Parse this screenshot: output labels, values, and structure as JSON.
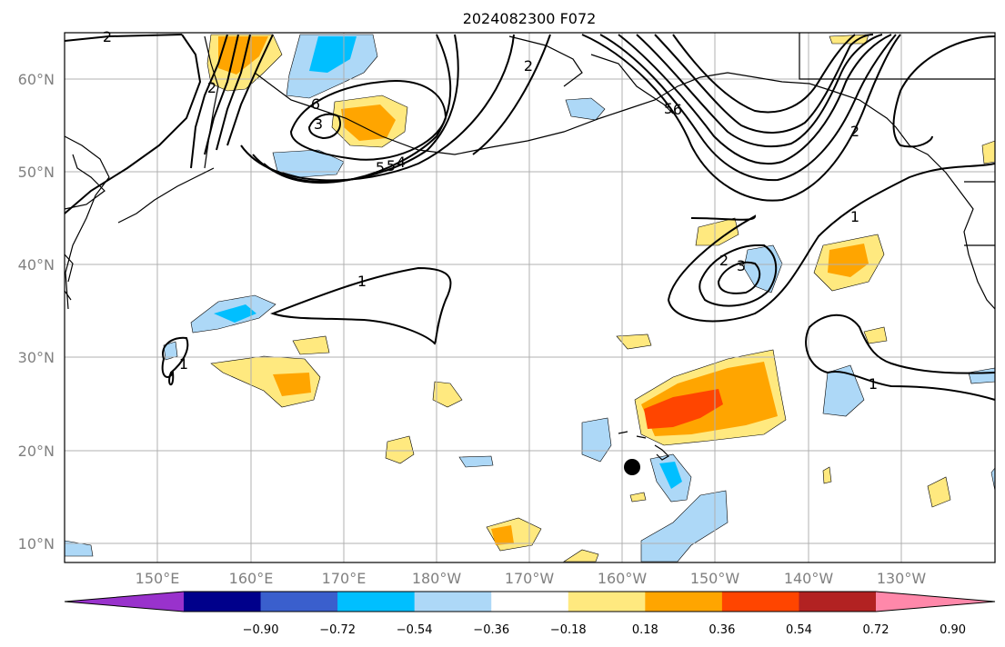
{
  "title": "2024082300 F072",
  "x_ticks": [
    "150°E",
    "160°E",
    "170°E",
    "180°W",
    "170°W",
    "160°W",
    "150°W",
    "140°W",
    "130°W"
  ],
  "y_ticks": [
    "10°N",
    "20°N",
    "30°N",
    "40°N",
    "50°N",
    "60°N"
  ],
  "colorbar": {
    "levels": [
      "−0.90",
      "−0.72",
      "−0.54",
      "−0.36",
      "−0.18",
      "0.18",
      "0.36",
      "0.54",
      "0.72",
      "0.90"
    ],
    "colors": [
      "#9932cc",
      "#00008b",
      "#3a5fcd",
      "#00bfff",
      "#add8f7",
      "#ffffff",
      "#ffe97f",
      "#ffa500",
      "#ff4500",
      "#b22222",
      "#ff88aa"
    ]
  },
  "contour_labels": [
    "2",
    "2",
    "6",
    "5",
    "5",
    "4",
    "3",
    "2",
    "1",
    "1",
    "1",
    "2",
    "3",
    "1",
    "5",
    "6",
    "2"
  ],
  "colors": {
    "land_outline": "#000000",
    "grid": "#b0b0b0",
    "contour": "#000000",
    "marker": "#000000"
  }
}
